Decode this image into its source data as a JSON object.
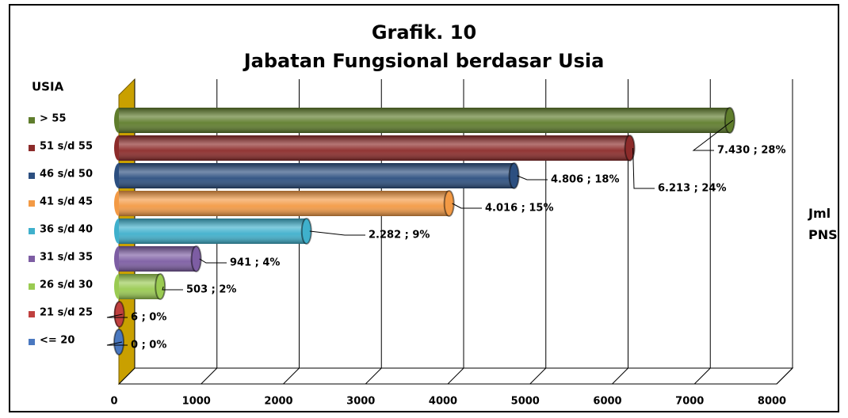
{
  "chart_data": {
    "type": "bar",
    "orientation": "horizontal",
    "title": "Grafik. 10",
    "subtitle": "Jabatan Fungsional berdasar Usia",
    "legend_title": "USIA",
    "x_label": "Jml PNS",
    "categories": [
      "<= 20",
      "21 s/d 25",
      "26 s/d 30",
      "31 s/d 35",
      "36 s/d 40",
      "41 s/d 45",
      "46 s/d 50",
      "51 s/d 55",
      "> 55"
    ],
    "values": [
      0,
      6,
      503,
      941,
      2282,
      4016,
      4806,
      6213,
      7430
    ],
    "value_labels": [
      "0 ; 0%",
      "6 ; 0%",
      "503 ; 2%",
      "941 ; 4%",
      "2.282 ; 9%",
      "4.016 ; 15%",
      "4.806 ; 18%",
      "6.213 ; 24%",
      "7.430 ; 28%"
    ],
    "colors": [
      "#4a78c0",
      "#c0403f",
      "#9acb52",
      "#7d5da3",
      "#3fb0cc",
      "#f39a45",
      "#2c4f80",
      "#8c2b2a",
      "#5f7d2c"
    ],
    "xlim": [
      0,
      8000
    ],
    "xticks": [
      0,
      1000,
      2000,
      3000,
      4000,
      5000,
      6000,
      7000,
      8000
    ],
    "grid": true,
    "legend": "left"
  }
}
